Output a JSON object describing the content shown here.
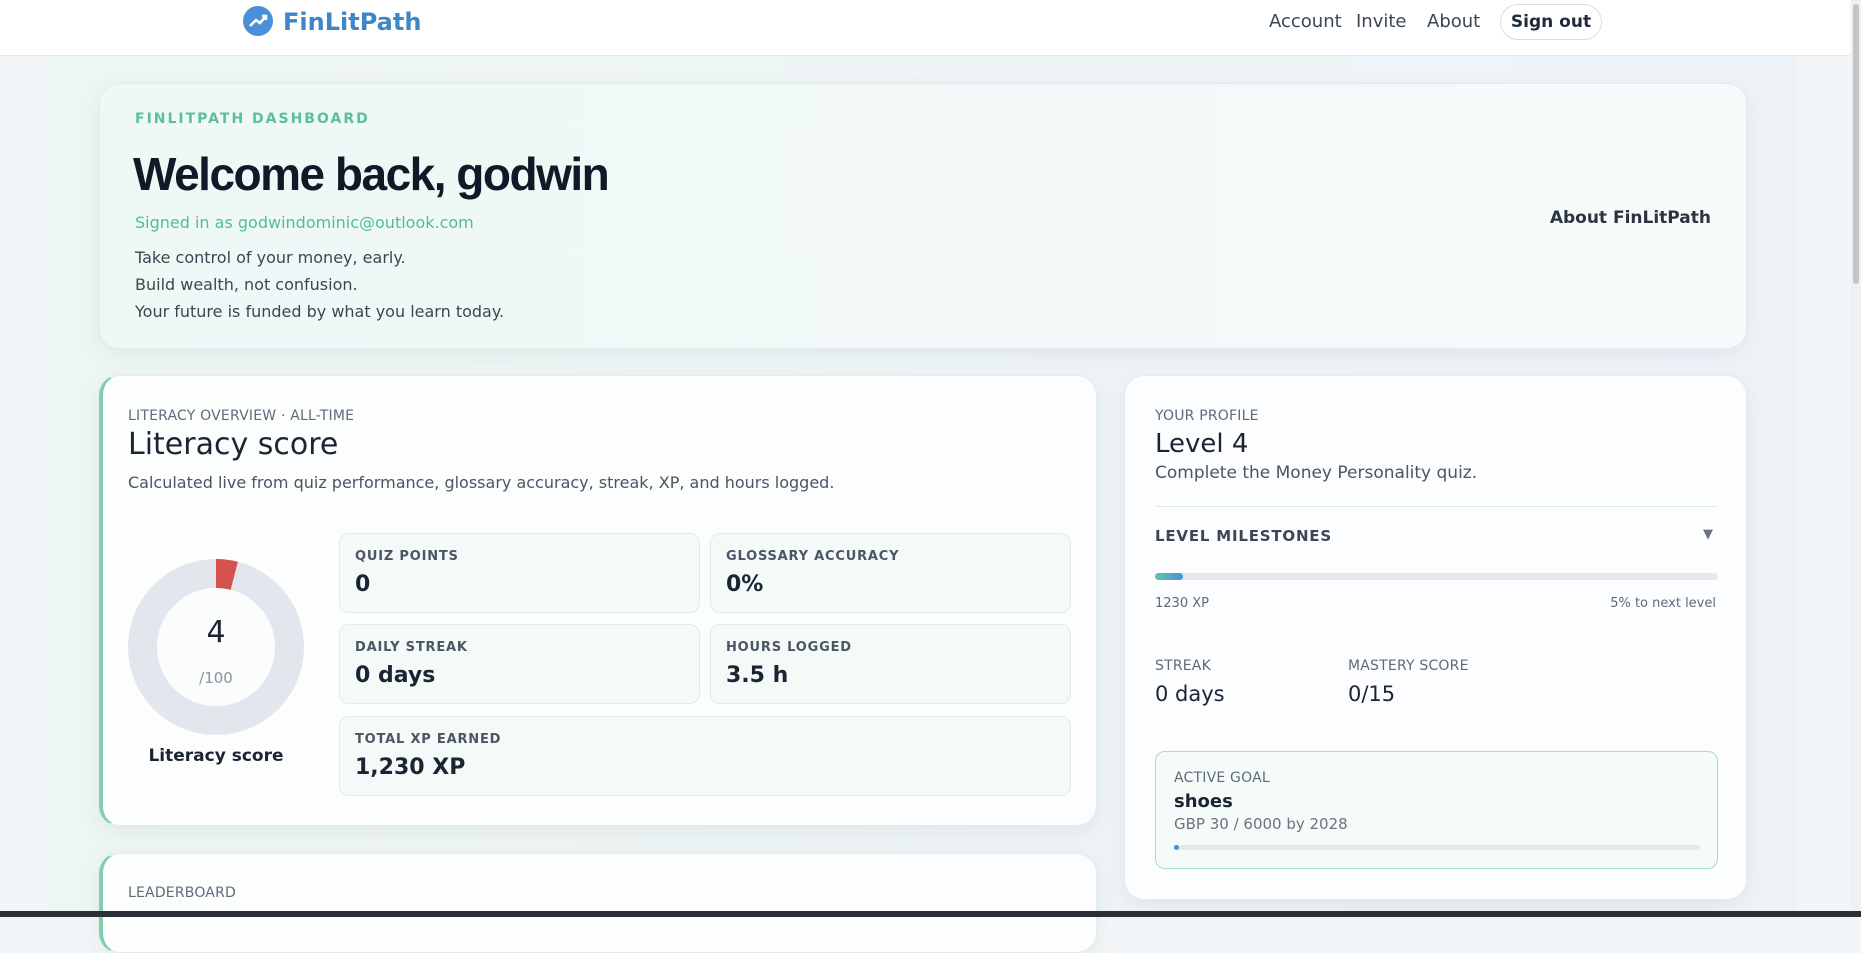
{
  "nav": {
    "brand": "FinLitPath",
    "links": [
      "Account",
      "Invite",
      "About"
    ],
    "signout": "Sign out"
  },
  "hero": {
    "eyebrow": "FINLITPATH DASHBOARD",
    "title": "Welcome back, godwin",
    "signed_in": "Signed in as godwindominic@outlook.com",
    "lines": [
      "Take control of your money, early.",
      "Build wealth, not confusion.",
      "Your future is funded by what you learn today."
    ],
    "about": "About FinLitPath"
  },
  "literacy": {
    "eyebrow": "LITERACY OVERVIEW · ALL-TIME",
    "title": "Literacy score",
    "description": "Calculated live from quiz performance, glossary accuracy, streak, XP, and hours logged.",
    "score": 4,
    "scale": {
      "value": 100,
      "label": "/100"
    },
    "caption": "Literacy score",
    "stats": [
      {
        "label": "QUIZ POINTS",
        "value": "0"
      },
      {
        "label": "GLOSSARY ACCURACY",
        "value": "0%"
      },
      {
        "label": "DAILY STREAK",
        "value": "0 days"
      },
      {
        "label": "HOURS LOGGED",
        "value": "3.5 h"
      },
      {
        "label": "TOTAL XP EARNED",
        "value": "1,230 XP"
      }
    ]
  },
  "leaderboard": {
    "eyebrow": "LEADERBOARD"
  },
  "profile": {
    "eyebrow": "YOUR PROFILE",
    "title": "Level 4",
    "description": "Complete the Money Personality quiz.",
    "milestones": "LEVEL MILESTONES",
    "xp": "1230 XP",
    "progress": {
      "value": 5,
      "label": "5% to next level"
    },
    "streak": {
      "label": "STREAK",
      "value": "0 days"
    },
    "mastery": {
      "label": "MASTERY SCORE",
      "value": "0/15"
    },
    "goal": {
      "eyebrow": "ACTIVE GOAL",
      "name": "shoes",
      "detail": "GBP 30 / 6000 by 2028"
    }
  }
}
